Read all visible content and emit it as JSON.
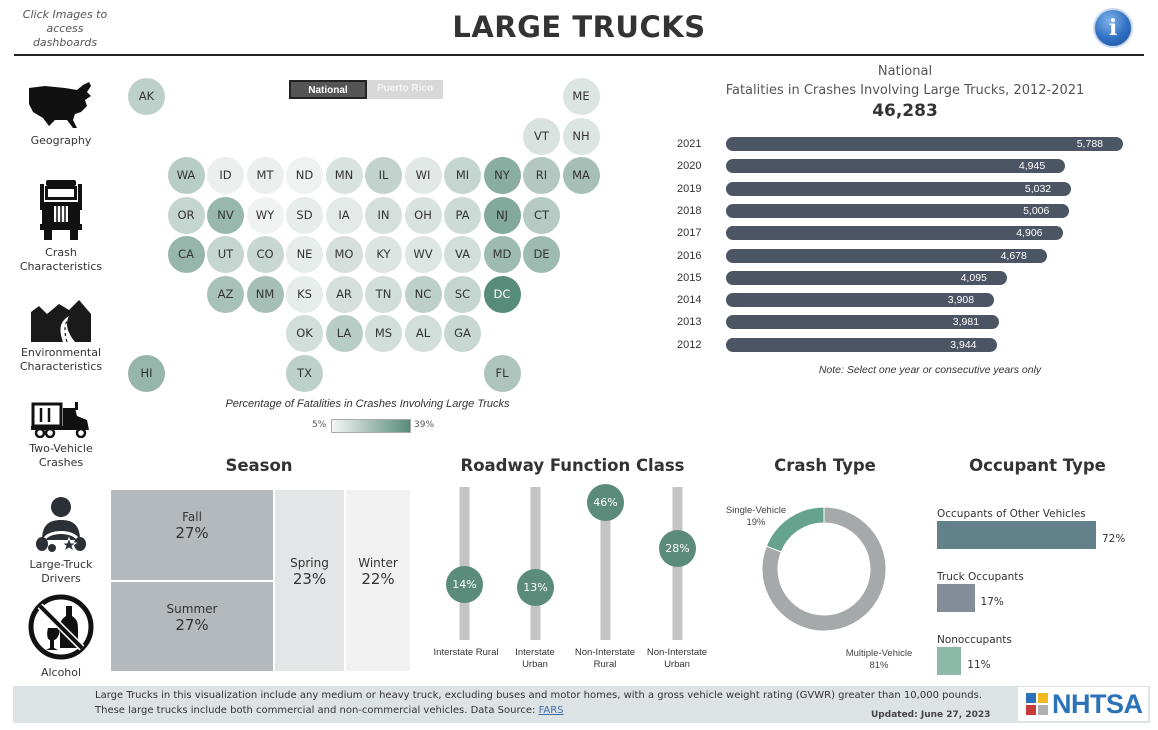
{
  "header": {
    "hint": "Click Images to access dashboards",
    "title": "LARGE TRUCKS",
    "info_icon": "info-icon"
  },
  "sidebar": {
    "items": [
      {
        "label": "Geography",
        "icon": "us-map-icon"
      },
      {
        "label": "Crash Characteristics",
        "icon": "semi-truck-front-icon"
      },
      {
        "label": "Environmental Characteristics",
        "icon": "mountain-road-icon"
      },
      {
        "label": "Two-Vehicle Crashes",
        "icon": "truck-side-icon"
      },
      {
        "label": "Large-Truck Drivers",
        "icon": "driver-icon"
      },
      {
        "label": "Alcohol",
        "icon": "no-alcohol-icon"
      }
    ]
  },
  "toggle": {
    "options": [
      "National",
      "Puerto Rico"
    ],
    "selected": "National"
  },
  "tile_map": {
    "legend_title": "Percentage of Fatalities in Crashes Involving Large Trucks",
    "legend_min": "5%",
    "legend_max": "39%",
    "color_low": "#f4f5f4",
    "color_high": "#578b7a",
    "states": [
      {
        "code": "AK",
        "row": 0,
        "col": 0,
        "level": 0.35
      },
      {
        "code": "ME",
        "row": 0,
        "col": 11,
        "level": 0.15
      },
      {
        "code": "VT",
        "row": 1,
        "col": 10,
        "level": 0.18
      },
      {
        "code": "NH",
        "row": 1,
        "col": 11,
        "level": 0.15
      },
      {
        "code": "WA",
        "row": 2,
        "col": 1,
        "level": 0.38
      },
      {
        "code": "ID",
        "row": 2,
        "col": 2,
        "level": 0.06
      },
      {
        "code": "MT",
        "row": 2,
        "col": 3,
        "level": 0.06
      },
      {
        "code": "ND",
        "row": 2,
        "col": 4,
        "level": 0.03
      },
      {
        "code": "MN",
        "row": 2,
        "col": 5,
        "level": 0.18
      },
      {
        "code": "IL",
        "row": 2,
        "col": 6,
        "level": 0.32
      },
      {
        "code": "WI",
        "row": 2,
        "col": 7,
        "level": 0.12
      },
      {
        "code": "MI",
        "row": 2,
        "col": 8,
        "level": 0.3
      },
      {
        "code": "NY",
        "row": 2,
        "col": 9,
        "level": 0.68
      },
      {
        "code": "RI",
        "row": 2,
        "col": 10,
        "level": 0.42
      },
      {
        "code": "MA",
        "row": 2,
        "col": 11,
        "level": 0.5
      },
      {
        "code": "OR",
        "row": 3,
        "col": 1,
        "level": 0.3
      },
      {
        "code": "NV",
        "row": 3,
        "col": 2,
        "level": 0.58
      },
      {
        "code": "WY",
        "row": 3,
        "col": 3,
        "level": 0.02
      },
      {
        "code": "SD",
        "row": 3,
        "col": 4,
        "level": 0.08
      },
      {
        "code": "IA",
        "row": 3,
        "col": 5,
        "level": 0.1
      },
      {
        "code": "IN",
        "row": 3,
        "col": 6,
        "level": 0.2
      },
      {
        "code": "OH",
        "row": 3,
        "col": 7,
        "level": 0.18
      },
      {
        "code": "PA",
        "row": 3,
        "col": 8,
        "level": 0.25
      },
      {
        "code": "NJ",
        "row": 3,
        "col": 9,
        "level": 0.72
      },
      {
        "code": "CT",
        "row": 3,
        "col": 10,
        "level": 0.4
      },
      {
        "code": "CA",
        "row": 4,
        "col": 1,
        "level": 0.6
      },
      {
        "code": "UT",
        "row": 4,
        "col": 2,
        "level": 0.3
      },
      {
        "code": "CO",
        "row": 4,
        "col": 3,
        "level": 0.28
      },
      {
        "code": "NE",
        "row": 4,
        "col": 4,
        "level": 0.08
      },
      {
        "code": "MO",
        "row": 4,
        "col": 5,
        "level": 0.2
      },
      {
        "code": "KY",
        "row": 4,
        "col": 6,
        "level": 0.15
      },
      {
        "code": "WV",
        "row": 4,
        "col": 7,
        "level": 0.14
      },
      {
        "code": "VA",
        "row": 4,
        "col": 8,
        "level": 0.22
      },
      {
        "code": "MD",
        "row": 4,
        "col": 9,
        "level": 0.55
      },
      {
        "code": "DE",
        "row": 4,
        "col": 10,
        "level": 0.55
      },
      {
        "code": "AZ",
        "row": 5,
        "col": 2,
        "level": 0.48
      },
      {
        "code": "NM",
        "row": 5,
        "col": 3,
        "level": 0.5
      },
      {
        "code": "KS",
        "row": 5,
        "col": 4,
        "level": 0.08
      },
      {
        "code": "AR",
        "row": 5,
        "col": 5,
        "level": 0.2
      },
      {
        "code": "TN",
        "row": 5,
        "col": 6,
        "level": 0.22
      },
      {
        "code": "NC",
        "row": 5,
        "col": 7,
        "level": 0.35
      },
      {
        "code": "SC",
        "row": 5,
        "col": 8,
        "level": 0.3
      },
      {
        "code": "DC",
        "row": 5,
        "col": 9,
        "level": 1.0
      },
      {
        "code": "OK",
        "row": 6,
        "col": 4,
        "level": 0.22
      },
      {
        "code": "LA",
        "row": 6,
        "col": 5,
        "level": 0.38
      },
      {
        "code": "MS",
        "row": 6,
        "col": 6,
        "level": 0.22
      },
      {
        "code": "AL",
        "row": 6,
        "col": 7,
        "level": 0.22
      },
      {
        "code": "GA",
        "row": 6,
        "col": 8,
        "level": 0.28
      },
      {
        "code": "HI",
        "row": 7,
        "col": 0,
        "level": 0.6
      },
      {
        "code": "TX",
        "row": 7,
        "col": 4,
        "level": 0.35
      },
      {
        "code": "FL",
        "row": 7,
        "col": 9,
        "level": 0.45
      }
    ]
  },
  "yearly_chart": {
    "subtitle": "National",
    "title": "Fatalities in Crashes Involving Large Trucks, 2012-2021",
    "total": "46,283",
    "note": "Note: Select one year or consecutive years only",
    "bar_color": "#4b5563",
    "rows": [
      {
        "year": "2021",
        "value": 5788,
        "label": "5,788"
      },
      {
        "year": "2020",
        "value": 4945,
        "label": "4,945"
      },
      {
        "year": "2019",
        "value": 5032,
        "label": "5,032"
      },
      {
        "year": "2018",
        "value": 5006,
        "label": "5,006"
      },
      {
        "year": "2017",
        "value": 4906,
        "label": "4,906"
      },
      {
        "year": "2016",
        "value": 4678,
        "label": "4,678"
      },
      {
        "year": "2015",
        "value": 4095,
        "label": "4,095"
      },
      {
        "year": "2014",
        "value": 3908,
        "label": "3,908"
      },
      {
        "year": "2013",
        "value": 3981,
        "label": "3,981"
      },
      {
        "year": "2012",
        "value": 3944,
        "label": "3,944"
      }
    ]
  },
  "season": {
    "title": "Season",
    "items": [
      {
        "label": "Fall",
        "pct": "27%",
        "color": "#b3b9bd"
      },
      {
        "label": "Summer",
        "pct": "27%",
        "color": "#b3b9bd"
      },
      {
        "label": "Spring",
        "pct": "23%",
        "color": "#e4e5e6"
      },
      {
        "label": "Winter",
        "pct": "22%",
        "color": "#f1f1f1"
      }
    ]
  },
  "roadway": {
    "title": "Roadway Function Class",
    "items": [
      {
        "label": "Interstate Rural",
        "value": 14,
        "pct": "14%"
      },
      {
        "label": "Interstate Urban",
        "value": 13,
        "pct": "13%"
      },
      {
        "label": "Non-Interstate Rural",
        "value": 46,
        "pct": "46%"
      },
      {
        "label": "Non-Interstate Urban",
        "value": 28,
        "pct": "28%"
      }
    ]
  },
  "crash_type": {
    "title": "Crash Type",
    "items": [
      {
        "label": "Single-Vehicle",
        "value": 19,
        "pct": "19%",
        "color": "#66a38f"
      },
      {
        "label": "Multiple-Vehicle",
        "value": 81,
        "pct": "81%",
        "color": "#a5a9aa"
      }
    ]
  },
  "occupant": {
    "title": "Occupant Type",
    "items": [
      {
        "label": "Occupants of Other Vehicles",
        "value": 72,
        "pct": "72%",
        "color": "#62818a"
      },
      {
        "label": "Truck Occupants",
        "value": 17,
        "pct": "17%",
        "color": "#838d99"
      },
      {
        "label": "Nonoccupants",
        "value": 11,
        "pct": "11%",
        "color": "#8cbaa8"
      }
    ]
  },
  "footer": {
    "line1": "Large Trucks in this visualization include any medium or heavy truck, excluding buses and motor homes, with a gross vehicle weight rating (GVWR) greater than 10,000 pounds.",
    "line2": "These large trucks include both commercial and non-commercial vehicles. Data Source: ",
    "source_link": "FARS",
    "updated": "Updated: June 27, 2023",
    "logo_text": "NHTSA"
  }
}
